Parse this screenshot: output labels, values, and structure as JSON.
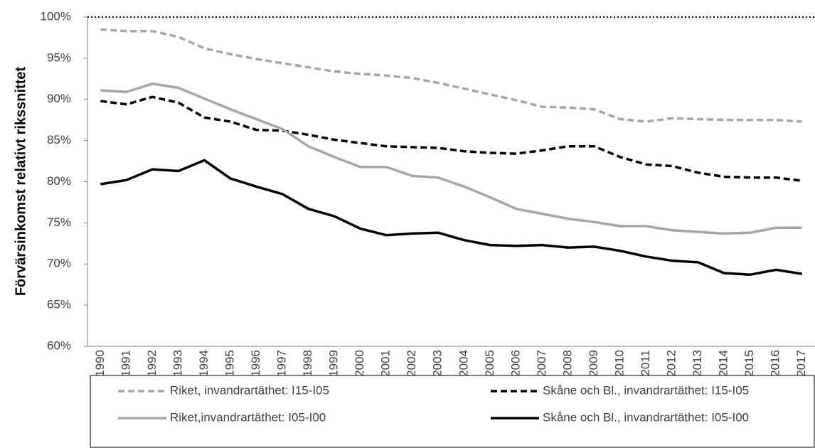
{
  "chart_data": {
    "type": "line",
    "y_label": "Förvärsinkomst relativt rikssnittet",
    "categories": [
      "1990",
      "1991",
      "1992",
      "1993",
      "1994",
      "1995",
      "1996",
      "1997",
      "1998",
      "1999",
      "2000",
      "2001",
      "2002",
      "2003",
      "2004",
      "2005",
      "2006",
      "2007",
      "2008",
      "2009",
      "2010",
      "2011",
      "2012",
      "2013",
      "2014",
      "2015",
      "2016",
      "2017"
    ],
    "ylim": [
      60,
      100
    ],
    "yticks": [
      {
        "value": 60,
        "label": "60%"
      },
      {
        "value": 65,
        "label": "65%"
      },
      {
        "value": 70,
        "label": "70%"
      },
      {
        "value": 75,
        "label": "75%"
      },
      {
        "value": 80,
        "label": "80%"
      },
      {
        "value": 85,
        "label": "85%"
      },
      {
        "value": 90,
        "label": "90%"
      },
      {
        "value": 95,
        "label": "95%"
      },
      {
        "value": 100,
        "label": "100%"
      }
    ],
    "reference_lines": [
      {
        "value": 100,
        "color": "#000000",
        "dash": "2,3"
      }
    ],
    "series": [
      {
        "name": "Riket, invandrartäthet: I15-I05",
        "color": "#a6a6a6",
        "dash": "9,5",
        "values": [
          98.5,
          98.3,
          98.3,
          97.6,
          96.2,
          95.5,
          94.9,
          94.4,
          93.9,
          93.4,
          93.1,
          92.9,
          92.6,
          92.0,
          91.3,
          90.6,
          89.9,
          89.1,
          89.0,
          88.8,
          87.6,
          87.3,
          87.7,
          87.6,
          87.5,
          87.5,
          87.5,
          87.3
        ]
      },
      {
        "name": "Skåne och Bl., invandrartäthet: I15-I05",
        "color": "#000000",
        "dash": "9,5",
        "values": [
          89.8,
          89.4,
          90.3,
          89.6,
          87.8,
          87.3,
          86.3,
          86.2,
          85.7,
          85.1,
          84.7,
          84.3,
          84.2,
          84.1,
          83.7,
          83.5,
          83.4,
          83.8,
          84.3,
          84.3,
          83.0,
          82.1,
          81.9,
          81.1,
          80.6,
          80.5,
          80.5,
          80.1
        ]
      },
      {
        "name": "Riket,invandrartäthet: I05-I00",
        "color": "#a6a6a6",
        "dash": "none",
        "values": [
          91.1,
          90.9,
          91.9,
          91.4,
          90.1,
          88.8,
          87.6,
          86.4,
          84.3,
          83.0,
          81.8,
          81.8,
          80.7,
          80.5,
          79.4,
          78.1,
          76.7,
          76.1,
          75.5,
          75.1,
          74.6,
          74.6,
          74.1,
          73.9,
          73.7,
          73.8,
          74.4,
          74.4
        ]
      },
      {
        "name": "Skåne och Bl., invandrartäthet: I05-I00",
        "color": "#000000",
        "dash": "none",
        "values": [
          79.7,
          80.2,
          81.5,
          81.3,
          82.6,
          80.4,
          79.4,
          78.5,
          76.7,
          75.8,
          74.3,
          73.5,
          73.7,
          73.8,
          72.9,
          72.3,
          72.2,
          72.3,
          72.0,
          72.1,
          71.6,
          70.9,
          70.4,
          70.2,
          68.9,
          68.7,
          69.3,
          68.8
        ]
      }
    ]
  }
}
